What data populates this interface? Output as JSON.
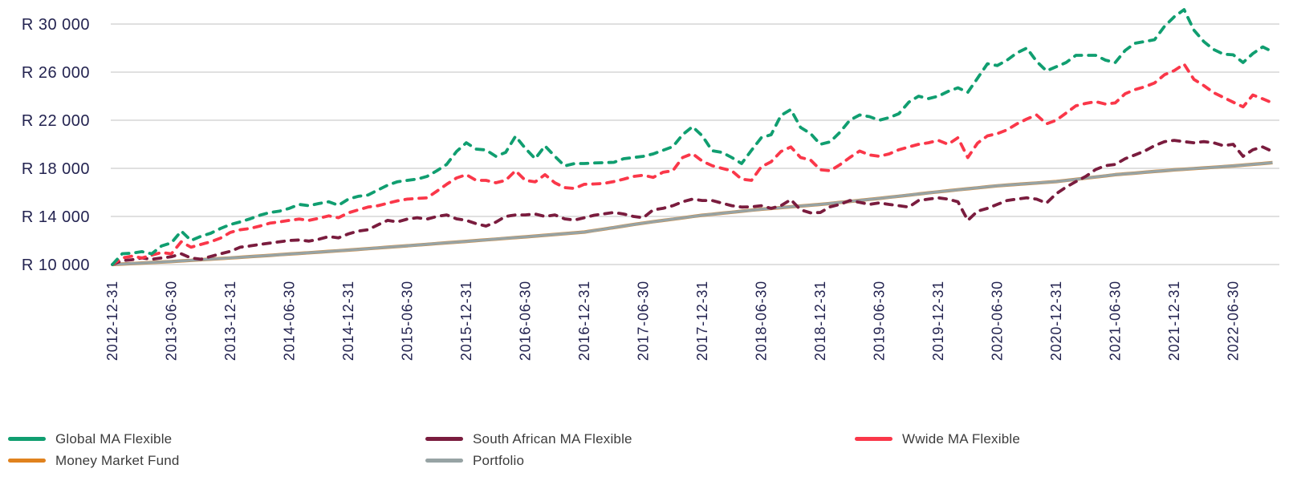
{
  "chart_data": {
    "type": "line",
    "title": "",
    "currency_prefix": "R",
    "grid": true,
    "y_axis": {
      "tick_labels": [
        "R 30 000",
        "R 26 000",
        "R 22 000",
        "R 18 000",
        "R 14 000",
        "R 10 000"
      ],
      "tick_values": [
        30000,
        26000,
        22000,
        18000,
        14000,
        10000
      ],
      "range": [
        10000,
        31500
      ]
    },
    "x_axis": {
      "start_date": "2012-12-31",
      "interval": "monthly",
      "tick_labels": [
        "2012-12-31",
        "2013-06-30",
        "2013-12-31",
        "2014-06-30",
        "2014-12-31",
        "2015-06-30",
        "2015-12-31",
        "2016-06-30",
        "2016-12-31",
        "2017-06-30",
        "2017-12-31",
        "2018-06-30",
        "2018-12-31",
        "2019-06-30",
        "2019-12-31",
        "2020-06-30",
        "2020-12-31",
        "2021-06-30",
        "2021-12-31",
        "2022-06-30"
      ],
      "tick_month_offsets": [
        0,
        6,
        12,
        18,
        24,
        30,
        36,
        42,
        48,
        54,
        60,
        66,
        72,
        78,
        84,
        90,
        96,
        102,
        108,
        114
      ]
    },
    "legend": {
      "position": "bottom",
      "items": [
        {
          "label": "Global MA Flexible",
          "color": "#109e70"
        },
        {
          "label": "South African MA Flexible",
          "color": "#7a1c3e"
        },
        {
          "label": "Wwide MA Flexible",
          "color": "#fa3749"
        },
        {
          "label": "Money Market Fund",
          "color": "#e0821e"
        },
        {
          "label": "Portfolio",
          "color": "#97a3a4"
        }
      ]
    },
    "series": [
      {
        "name": "Money Market Fund",
        "color": "#e0821e",
        "style": "solid",
        "values": [
          10000,
          10042,
          10083,
          10125,
          10167,
          10208,
          10250,
          10300,
          10350,
          10400,
          10450,
          10500,
          10550,
          10603,
          10657,
          10710,
          10763,
          10817,
          10870,
          10925,
          10980,
          11035,
          11090,
          11145,
          11200,
          11260,
          11320,
          11380,
          11440,
          11500,
          11560,
          11622,
          11683,
          11745,
          11807,
          11868,
          11930,
          11992,
          12053,
          12115,
          12177,
          12238,
          12300,
          12367,
          12433,
          12500,
          12567,
          12633,
          12700,
          12825,
          12950,
          13075,
          13200,
          13325,
          13450,
          13558,
          13667,
          13775,
          13883,
          13992,
          14100,
          14183,
          14267,
          14350,
          14433,
          14517,
          14600,
          14667,
          14733,
          14800,
          14867,
          14933,
          15000,
          15083,
          15167,
          15250,
          15333,
          15417,
          15500,
          15592,
          15683,
          15775,
          15867,
          15958,
          16050,
          16133,
          16217,
          16300,
          16383,
          16467,
          16550,
          16608,
          16667,
          16725,
          16783,
          16842,
          16900,
          16995,
          17090,
          17185,
          17280,
          17375,
          17470,
          17537,
          17603,
          17670,
          17737,
          17803,
          17870,
          17925,
          17980,
          18035,
          18090,
          18145,
          18200,
          18268,
          18335,
          18403,
          18470
        ]
      },
      {
        "name": "Portfolio",
        "color": "#97a3a4",
        "style": "solid",
        "values": [
          10000,
          10042,
          10083,
          10125,
          10167,
          10208,
          10250,
          10300,
          10350,
          10400,
          10450,
          10500,
          10550,
          10603,
          10657,
          10710,
          10763,
          10817,
          10870,
          10925,
          10980,
          11035,
          11090,
          11145,
          11200,
          11260,
          11320,
          11380,
          11440,
          11500,
          11560,
          11622,
          11683,
          11745,
          11807,
          11868,
          11930,
          11992,
          12053,
          12115,
          12177,
          12238,
          12300,
          12367,
          12433,
          12500,
          12567,
          12633,
          12700,
          12825,
          12950,
          13075,
          13200,
          13325,
          13450,
          13558,
          13667,
          13775,
          13883,
          13992,
          14100,
          14183,
          14267,
          14350,
          14433,
          14517,
          14600,
          14667,
          14733,
          14800,
          14867,
          14933,
          15000,
          15083,
          15167,
          15250,
          15333,
          15417,
          15500,
          15592,
          15683,
          15775,
          15867,
          15958,
          16050,
          16133,
          16217,
          16300,
          16383,
          16467,
          16550,
          16608,
          16667,
          16725,
          16783,
          16842,
          16900,
          16995,
          17090,
          17185,
          17280,
          17375,
          17470,
          17537,
          17603,
          17670,
          17737,
          17803,
          17870,
          17925,
          17980,
          18035,
          18090,
          18145,
          18200,
          18268,
          18335,
          18403,
          18470
        ]
      },
      {
        "name": "South African MA Flexible",
        "color": "#7a1c3e",
        "style": "dashed",
        "values": [
          10000,
          10330,
          10400,
          10550,
          10440,
          10550,
          10650,
          10890,
          10550,
          10440,
          10670,
          10890,
          11100,
          11440,
          11550,
          11670,
          11780,
          11890,
          12000,
          12040,
          11950,
          12110,
          12330,
          12220,
          12550,
          12780,
          12890,
          13300,
          13670,
          13550,
          13780,
          13890,
          13780,
          14000,
          14130,
          13800,
          13670,
          13400,
          13200,
          13530,
          14000,
          14130,
          14130,
          14200,
          14000,
          14130,
          13800,
          13700,
          13890,
          14100,
          14220,
          14330,
          14200,
          14000,
          13890,
          14550,
          14670,
          14890,
          15220,
          15440,
          15330,
          15330,
          15110,
          14890,
          14780,
          14800,
          14890,
          14670,
          14890,
          15400,
          14550,
          14300,
          14330,
          14800,
          15000,
          15330,
          15170,
          15000,
          15130,
          15000,
          14890,
          14780,
          15330,
          15440,
          15550,
          15440,
          15220,
          13670,
          14440,
          14670,
          15000,
          15330,
          15440,
          15550,
          15440,
          15110,
          15890,
          16440,
          16900,
          17330,
          17900,
          18220,
          18330,
          18800,
          19110,
          19440,
          19890,
          20220,
          20330,
          20220,
          20130,
          20220,
          20130,
          19890,
          20000,
          19000,
          19550,
          19780,
          19400
        ]
      },
      {
        "name": "Wwide MA Flexible",
        "color": "#fa3749",
        "style": "dashed",
        "values": [
          10000,
          10550,
          10700,
          10550,
          10780,
          11000,
          10890,
          11890,
          11440,
          11670,
          11890,
          12200,
          12670,
          12890,
          13000,
          13200,
          13440,
          13550,
          13670,
          13780,
          13670,
          13850,
          14050,
          13890,
          14300,
          14550,
          14780,
          14890,
          15100,
          15300,
          15440,
          15500,
          15550,
          16100,
          16670,
          17200,
          17470,
          17000,
          17000,
          16800,
          17000,
          17800,
          17000,
          16870,
          17470,
          16800,
          16400,
          16330,
          16670,
          16700,
          16750,
          16900,
          17100,
          17330,
          17430,
          17250,
          17670,
          17800,
          18900,
          19220,
          18600,
          18220,
          18000,
          17800,
          17100,
          17000,
          18130,
          18550,
          19400,
          19780,
          18900,
          18700,
          17890,
          17800,
          18300,
          18900,
          19440,
          19110,
          19000,
          19200,
          19550,
          19780,
          20000,
          20130,
          20330,
          20000,
          20550,
          18900,
          20100,
          20700,
          20890,
          21200,
          21700,
          22100,
          22440,
          21700,
          22000,
          22600,
          23200,
          23400,
          23550,
          23350,
          23440,
          24200,
          24550,
          24780,
          25100,
          25780,
          26130,
          26670,
          25400,
          24890,
          24300,
          23900,
          23500,
          23110,
          24100,
          23780,
          23440
        ]
      },
      {
        "name": "Global MA Flexible",
        "color": "#109e70",
        "style": "dashed",
        "values": [
          10000,
          10900,
          10950,
          11070,
          10890,
          11550,
          11800,
          12780,
          12000,
          12350,
          12600,
          13000,
          13330,
          13550,
          13800,
          14100,
          14330,
          14440,
          14670,
          15000,
          14890,
          15070,
          15220,
          14930,
          15440,
          15670,
          15780,
          16200,
          16600,
          16890,
          17000,
          17110,
          17330,
          17800,
          18330,
          19400,
          20130,
          19600,
          19530,
          19000,
          19330,
          20670,
          19670,
          18800,
          19870,
          19000,
          18200,
          18400,
          18400,
          18450,
          18470,
          18500,
          18800,
          18900,
          19000,
          19200,
          19500,
          19800,
          20800,
          21470,
          20700,
          19470,
          19330,
          18900,
          18400,
          19500,
          20550,
          20800,
          22400,
          22890,
          21400,
          20900,
          20000,
          20200,
          21000,
          22000,
          22440,
          22300,
          22000,
          22220,
          22550,
          23500,
          24000,
          23800,
          24000,
          24400,
          24700,
          24330,
          25500,
          26700,
          26550,
          27000,
          27600,
          28000,
          26900,
          26100,
          26450,
          26800,
          27400,
          27400,
          27400,
          27000,
          26800,
          27800,
          28400,
          28550,
          28700,
          29800,
          30600,
          31200,
          29500,
          28550,
          27890,
          27500,
          27440,
          26800,
          27550,
          28100,
          27700
        ]
      }
    ],
    "style_tokens": {
      "grid_color": "#e0e0e0",
      "axis_text_color": "#232350",
      "legend_text_color": "#3c3c3c",
      "background": "#ffffff"
    }
  }
}
